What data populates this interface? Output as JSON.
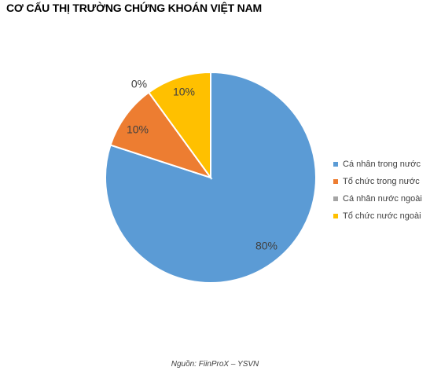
{
  "chart_data": {
    "type": "pie",
    "title": "CƠ CẤU THỊ TRƯỜNG CHỨNG KHOÁN VIỆT NAM",
    "categories": [
      "Cá nhân trong nước",
      "Tổ chức trong nước",
      "Cá nhân nước ngoài",
      "Tổ chức nước ngoài"
    ],
    "values": [
      80,
      10,
      0,
      10
    ],
    "labels": [
      "80%",
      "10%",
      "0%",
      "10%"
    ],
    "colors": [
      "#5B9BD5",
      "#ED7D31",
      "#A5A5A5",
      "#FFC000"
    ],
    "legend_position": "right",
    "start_angle": "12 o'clock",
    "direction": "clockwise"
  },
  "source": "Nguồn: FiinProX – YSVN"
}
